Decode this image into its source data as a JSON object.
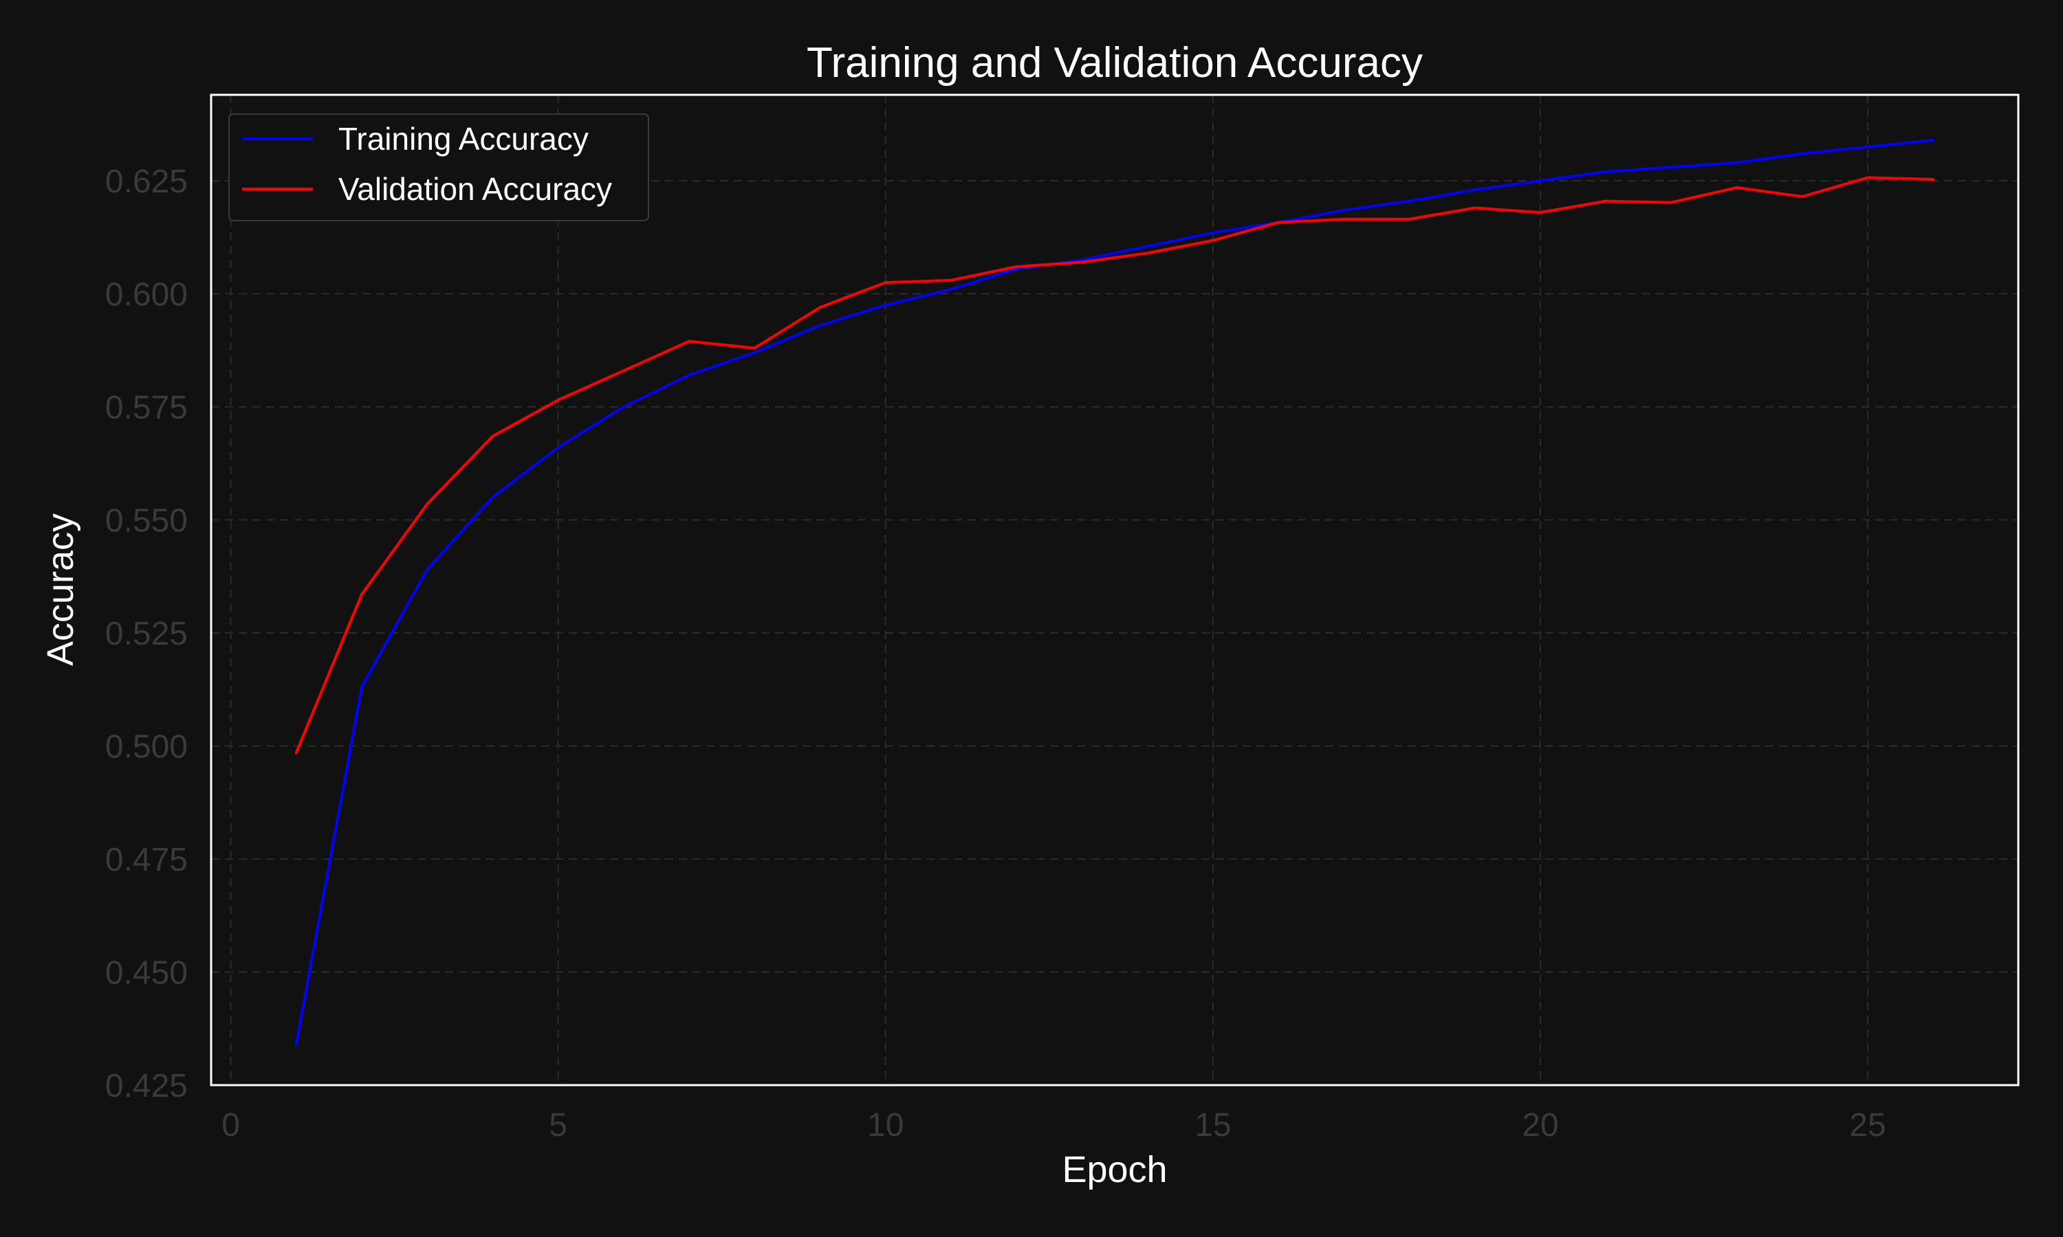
{
  "colors": {
    "background": "#111111",
    "frame": "#ffffff",
    "training": "#0000ff",
    "validation": "#ff0000"
  },
  "chart_data": {
    "type": "line",
    "title": "Training and Validation Accuracy",
    "xlabel": "Epoch",
    "ylabel": "Accuracy",
    "xlim": [
      -0.3,
      27.3
    ],
    "ylim": [
      0.425,
      0.644
    ],
    "x_ticks": [
      0,
      5,
      10,
      15,
      20,
      25
    ],
    "y_ticks": [
      0.425,
      0.45,
      0.475,
      0.5,
      0.525,
      0.55,
      0.575,
      0.6,
      0.625
    ],
    "y_tick_labels": [
      "0.425",
      "0.450",
      "0.475",
      "0.500",
      "0.525",
      "0.550",
      "0.575",
      "0.600",
      "0.625"
    ],
    "grid": true,
    "legend_position": "top-left",
    "x": [
      1,
      2,
      3,
      4,
      5,
      6,
      7,
      8,
      9,
      10,
      11,
      12,
      13,
      14,
      15,
      16,
      17,
      18,
      19,
      20,
      21,
      22,
      23,
      24,
      25,
      26
    ],
    "series": [
      {
        "name": "Training Accuracy",
        "color": "#0000ff",
        "values": [
          0.434,
          0.513,
          0.539,
          0.555,
          0.566,
          0.575,
          0.582,
          0.587,
          0.593,
          0.5975,
          0.601,
          0.6055,
          0.6075,
          0.6105,
          0.6135,
          0.6158,
          0.6185,
          0.6205,
          0.623,
          0.625,
          0.627,
          0.628,
          0.629,
          0.631,
          0.6325,
          0.634
        ]
      },
      {
        "name": "Validation Accuracy",
        "color": "#ff0000",
        "values": [
          0.4985,
          0.5335,
          0.5535,
          0.5685,
          0.5765,
          0.583,
          0.5895,
          0.588,
          0.597,
          0.6025,
          0.603,
          0.606,
          0.607,
          0.609,
          0.6118,
          0.6158,
          0.6165,
          0.6165,
          0.619,
          0.618,
          0.6205,
          0.6202,
          0.6235,
          0.6215,
          0.6257,
          0.6253
        ]
      }
    ]
  }
}
